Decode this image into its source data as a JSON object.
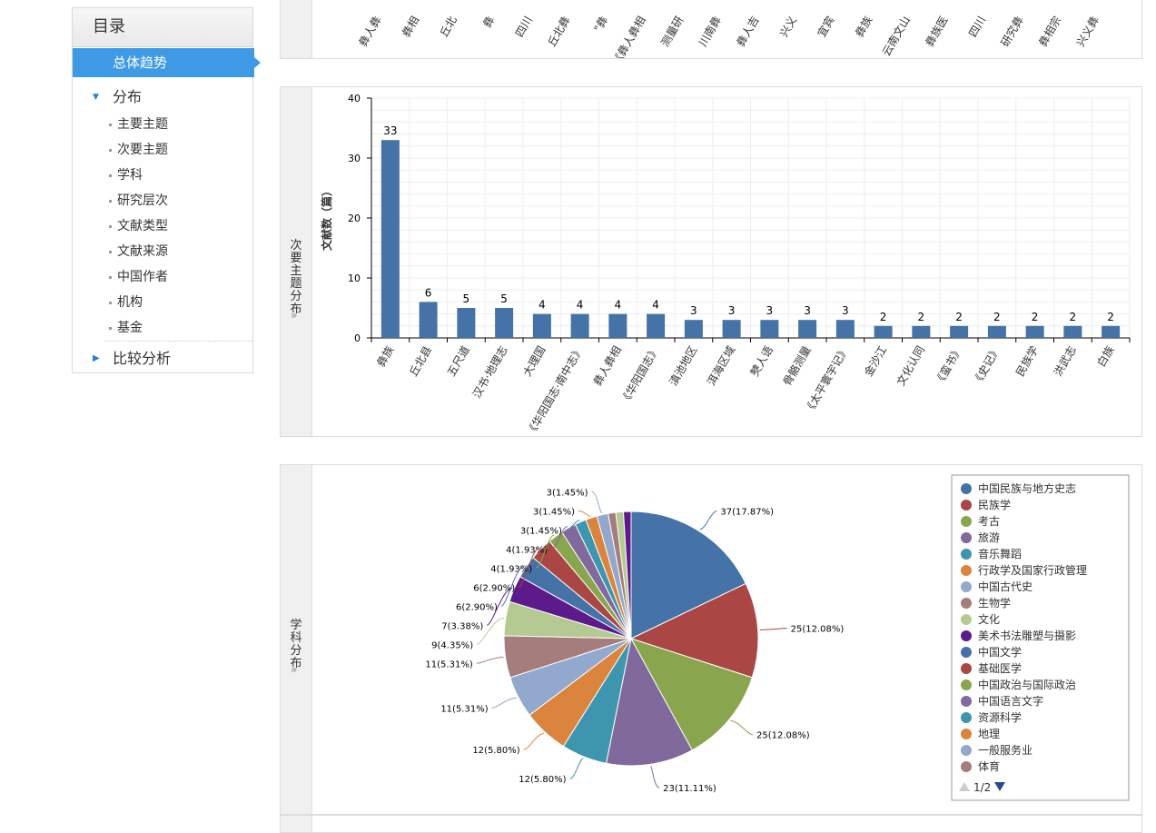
{
  "sidebar": {
    "title": "目录",
    "active": "总体趋势",
    "distribution": "分布",
    "sub_items": [
      "主要主题",
      "次要主题",
      "学科",
      "研究层次",
      "文献类型",
      "文献来源",
      "中国作者",
      "机构",
      "基金"
    ],
    "compare": "比较分析"
  },
  "top_panel": {
    "partial_labels": [
      "彝人彝",
      "彝相",
      "丘北",
      "彝",
      "四川",
      "丘北彝",
      "\"彝",
      "《彝人彝相",
      "测量研",
      "川南彝",
      "彝人吉",
      "兴义",
      "宜宾",
      "彝族",
      "云南文山",
      "彝族医",
      "四川",
      "研究彝",
      "彝相宗",
      "兴义彝"
    ]
  },
  "bar_panel": {
    "tab_label": "次要主题分布"
  },
  "pie_panel": {
    "tab_label": "学科分布",
    "legend_page": "1/2"
  },
  "chart_data": [
    {
      "type": "bar",
      "ylabel": "文献数（篇）",
      "ylim": [
        0,
        40
      ],
      "yticks": [
        0,
        10,
        20,
        30,
        40
      ],
      "categories": [
        "彝族",
        "丘北县",
        "五尺道",
        "汉书·地理志",
        "大理国",
        "《华阳国志·南中志》",
        "彝人彝相",
        "《华阳国志》",
        "滇池地区",
        "洱海区域",
        "僰人语",
        "骨骼测量",
        "《太平寰宇记》",
        "金沙江",
        "文化认同",
        "《蛮书》",
        "《史记》",
        "民族学",
        "洪武志",
        "白族"
      ],
      "values": [
        33,
        6,
        5,
        5,
        4,
        4,
        4,
        4,
        3,
        3,
        3,
        3,
        3,
        2,
        2,
        2,
        2,
        2,
        2,
        2
      ],
      "color": "#4572a7"
    },
    {
      "type": "pie",
      "slices": [
        {
          "name": "中国民族与地方史志",
          "value": 37,
          "label": "37(17.87%)",
          "color": "#4572a7"
        },
        {
          "name": "民族学",
          "value": 25,
          "label": "25(12.08%)",
          "color": "#aa4643"
        },
        {
          "name": "考古",
          "value": 25,
          "label": "25(12.08%)",
          "color": "#89a54e"
        },
        {
          "name": "旅游",
          "value": 23,
          "label": "23(11.11%)",
          "color": "#80699b"
        },
        {
          "name": "音乐舞蹈",
          "value": 12,
          "label": "12(5.80%)",
          "color": "#3d96ae"
        },
        {
          "name": "行政学及国家行政管理",
          "value": 12,
          "label": "12(5.80%)",
          "color": "#db843d"
        },
        {
          "name": "中国古代史",
          "value": 11,
          "label": "11(5.31%)",
          "color": "#92a8cd"
        },
        {
          "name": "生物学",
          "value": 11,
          "label": "11(5.31%)",
          "color": "#a47d7c"
        },
        {
          "name": "文化",
          "value": 9,
          "label": "9(4.35%)",
          "color": "#b5ca92"
        },
        {
          "name": "美术书法雕塑与摄影",
          "value": 7,
          "label": "7(3.38%)",
          "color": "#5c1a8a"
        },
        {
          "name": "中国文学",
          "value": 6,
          "label": "6(2.90%)",
          "color": "#4572a7"
        },
        {
          "name": "基础医学",
          "value": 6,
          "label": "6(2.90%)",
          "color": "#aa4643"
        },
        {
          "name": "中国政治与国际政治",
          "value": 4,
          "label": "4(1.93%)",
          "color": "#89a54e"
        },
        {
          "name": "中国语言文字",
          "value": 4,
          "label": "4(1.93%)",
          "color": "#80699b"
        },
        {
          "name": "资源科学",
          "value": 3,
          "label": "3(1.45%)",
          "color": "#3d96ae"
        },
        {
          "name": "地理",
          "value": 3,
          "label": "3(1.45%)",
          "color": "#db843d"
        },
        {
          "name": "一般服务业",
          "value": 3,
          "label": "3(1.45%)",
          "color": "#92a8cd"
        },
        {
          "name": "体育",
          "value": 2,
          "label": "",
          "color": "#a47d7c"
        },
        {
          "name": "",
          "value": 2,
          "label": "",
          "color": "#b5ca92"
        },
        {
          "name": "",
          "value": 2,
          "label": "",
          "color": "#5c1a8a"
        }
      ],
      "legend_position": "right"
    }
  ]
}
